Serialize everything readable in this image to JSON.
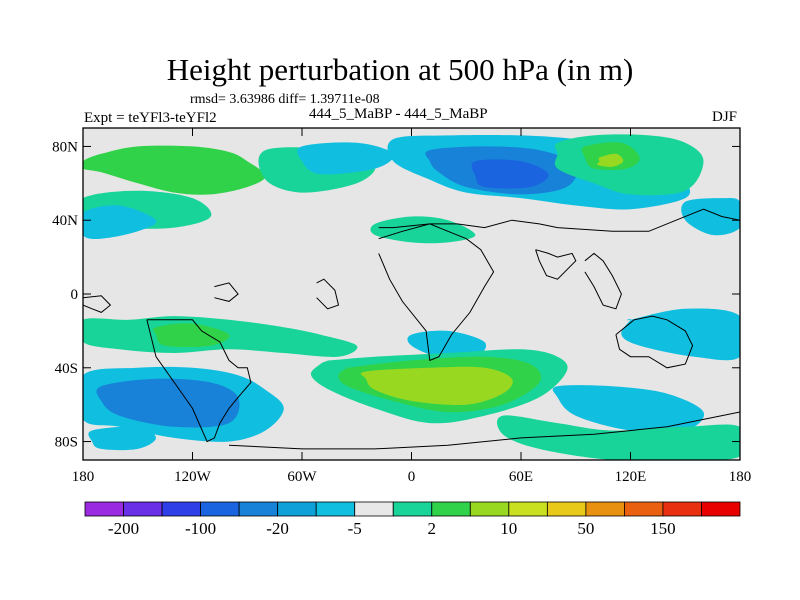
{
  "header": {
    "title": "Height perturbation at 500 hPa (in m)",
    "stats": "rmsd= 3.63986 diff= 1.39711e-08",
    "experiment": "Expt = teYFl3-teYFl2",
    "subtitle": "444_5_MaBP - 444_5_MaBP",
    "season": "DJF"
  },
  "chart_data": {
    "type": "heatmap",
    "title": "Height perturbation at 500 hPa (in m)",
    "subtitle": "444_5_MaBP - 444_5_MaBP",
    "annotations": [
      "rmsd= 3.63986 diff= 1.39711e-08",
      "Expt = teYFl3-teYFl2",
      "DJF"
    ],
    "xlim": [
      -180,
      180
    ],
    "ylim": [
      -90,
      90
    ],
    "x_ticks": [
      {
        "value": -180,
        "label": "180"
      },
      {
        "value": -120,
        "label": "120W"
      },
      {
        "value": -60,
        "label": "60W"
      },
      {
        "value": 0,
        "label": "0"
      },
      {
        "value": 60,
        "label": "60E"
      },
      {
        "value": 120,
        "label": "120E"
      },
      {
        "value": 180,
        "label": "180"
      }
    ],
    "y_ticks": [
      {
        "value": 80,
        "label": "80N"
      },
      {
        "value": 40,
        "label": "40N"
      },
      {
        "value": 0,
        "label": "0"
      },
      {
        "value": -40,
        "label": "40S"
      },
      {
        "value": -80,
        "label": "80S"
      }
    ],
    "colorbar": {
      "colors": [
        "#9a2be0",
        "#6a30e8",
        "#2e3fe8",
        "#1a64e0",
        "#1882d8",
        "#0ea0d8",
        "#10bfe0",
        "#e8e8e8",
        "#18d498",
        "#30d24a",
        "#98d820",
        "#c8e020",
        "#e8c818",
        "#e89010",
        "#e86010",
        "#e83010",
        "#e80000"
      ],
      "labels": [
        {
          "after_box": 1,
          "text": "-200"
        },
        {
          "after_box": 3,
          "text": "-100"
        },
        {
          "after_box": 5,
          "text": "-20"
        },
        {
          "after_box": 7,
          "text": "-5"
        },
        {
          "after_box": 9,
          "text": "2"
        },
        {
          "after_box": 11,
          "text": "10"
        },
        {
          "after_box": 13,
          "text": "50"
        },
        {
          "after_box": 15,
          "text": "150"
        }
      ]
    },
    "regions": [
      {
        "level": "10",
        "color": "#30d24a",
        "lon": [
          -180,
          -170,
          -150,
          -120,
          -100,
          -90,
          -80,
          -90,
          -110,
          -130,
          -150,
          -170,
          -180
        ],
        "lat": [
          72,
          76,
          80,
          80,
          77,
          72,
          64,
          58,
          54,
          55,
          60,
          66,
          68
        ]
      },
      {
        "level": "2",
        "color": "#18d498",
        "lon": [
          -80,
          -40,
          -20,
          -30,
          -60,
          -80
        ],
        "lat": [
          78,
          78,
          70,
          60,
          55,
          62
        ]
      },
      {
        "level": "-5",
        "color": "#10bfe0",
        "lon": [
          -60,
          -30,
          -10,
          -20,
          -50,
          -60
        ],
        "lat": [
          80,
          82,
          76,
          68,
          65,
          72
        ]
      },
      {
        "level": "2",
        "color": "#18d498",
        "lon": [
          -180,
          -150,
          -120,
          -110,
          -130,
          -160,
          -180
        ],
        "lat": [
          52,
          56,
          52,
          42,
          36,
          36,
          40
        ]
      },
      {
        "level": "-5",
        "color": "#10bfe0",
        "lon": [
          -180,
          -160,
          -140,
          -150,
          -170,
          -180
        ],
        "lat": [
          44,
          48,
          40,
          34,
          30,
          32
        ]
      },
      {
        "level": "-5",
        "color": "#10bfe0",
        "lon": [
          -10,
          20,
          60,
          90,
          120,
          140,
          150,
          150,
          120,
          90,
          60,
          30,
          10,
          -10
        ],
        "lat": [
          84,
          86,
          86,
          84,
          80,
          74,
          62,
          52,
          46,
          48,
          52,
          55,
          62,
          72
        ]
      },
      {
        "level": "-20",
        "color": "#1882d8",
        "lon": [
          10,
          40,
          70,
          90,
          85,
          60,
          30,
          15,
          10
        ],
        "lat": [
          78,
          80,
          78,
          70,
          58,
          54,
          58,
          66,
          72
        ]
      },
      {
        "level": "-100",
        "color": "#1a64e0",
        "lon": [
          35,
          60,
          75,
          65,
          40,
          35
        ],
        "lat": [
          72,
          72,
          65,
          58,
          58,
          64
        ]
      },
      {
        "level": "2",
        "color": "#18d498",
        "lon": [
          80,
          100,
          130,
          150,
          160,
          150,
          120,
          100,
          80,
          80
        ],
        "lat": [
          82,
          86,
          86,
          82,
          72,
          56,
          54,
          60,
          68,
          76
        ]
      },
      {
        "level": "10",
        "color": "#30d24a",
        "lon": [
          95,
          115,
          125,
          118,
          100,
          95
        ],
        "lat": [
          80,
          82,
          74,
          68,
          68,
          74
        ]
      },
      {
        "level": "50",
        "color": "#98d820",
        "lon": [
          103,
          112,
          116,
          110,
          102,
          103
        ],
        "lat": [
          74,
          76,
          72,
          69,
          70,
          72
        ]
      },
      {
        "level": "-5",
        "color": "#10bfe0",
        "lon": [
          150,
          170,
          180,
          180,
          165,
          150
        ],
        "lat": [
          50,
          52,
          50,
          36,
          32,
          40
        ]
      },
      {
        "level": "2",
        "color": "#18d498",
        "lon": [
          -20,
          0,
          20,
          35,
          20,
          0,
          -20
        ],
        "lat": [
          38,
          42,
          40,
          32,
          28,
          28,
          32
        ]
      },
      {
        "level": "2",
        "color": "#18d498",
        "lon": [
          -180,
          -155,
          -130,
          -100,
          -70,
          -50,
          -30,
          -40,
          -70,
          -100,
          -130,
          -160,
          -180
        ],
        "lat": [
          -14,
          -14,
          -12,
          -14,
          -18,
          -22,
          -28,
          -34,
          -32,
          -30,
          -32,
          -30,
          -26
        ]
      },
      {
        "level": "10",
        "color": "#30d24a",
        "lon": [
          -140,
          -120,
          -100,
          -110,
          -135,
          -140
        ],
        "lat": [
          -18,
          -16,
          -22,
          -28,
          -28,
          -22
        ]
      },
      {
        "level": "-5",
        "color": "#10bfe0",
        "lon": [
          0,
          20,
          40,
          35,
          15,
          0
        ],
        "lat": [
          -22,
          -20,
          -26,
          -34,
          -34,
          -28
        ]
      },
      {
        "level": "-5",
        "color": "#10bfe0",
        "lon": [
          120,
          150,
          180,
          180,
          155,
          125,
          115,
          120
        ],
        "lat": [
          -14,
          -8,
          -12,
          -34,
          -34,
          -28,
          -22,
          -14
        ]
      },
      {
        "level": "-5",
        "color": "#10bfe0",
        "lon": [
          -180,
          -150,
          -120,
          -95,
          -80,
          -70,
          -80,
          -100,
          -130,
          -160,
          -180
        ],
        "lat": [
          -44,
          -40,
          -40,
          -44,
          -52,
          -62,
          -74,
          -80,
          -78,
          -72,
          -68
        ]
      },
      {
        "level": "-20",
        "color": "#1882d8",
        "lon": [
          -170,
          -140,
          -110,
          -95,
          -100,
          -130,
          -160,
          -170
        ],
        "lat": [
          -50,
          -46,
          -48,
          -56,
          -70,
          -72,
          -66,
          -58
        ]
      },
      {
        "level": "-5",
        "color": "#10bfe0",
        "lon": [
          -175,
          -150,
          -140,
          -150,
          -170,
          -175
        ],
        "lat": [
          -74,
          -72,
          -78,
          -84,
          -84,
          -80
        ]
      },
      {
        "level": "2",
        "color": "#18d498",
        "lon": [
          -45,
          -20,
          20,
          60,
          80,
          85,
          70,
          40,
          10,
          -20,
          -45,
          -55,
          -50,
          -45
        ],
        "lat": [
          -36,
          -34,
          -32,
          -30,
          -34,
          -42,
          -56,
          -66,
          -70,
          -62,
          -52,
          -44,
          -38,
          -36
        ]
      },
      {
        "level": "10",
        "color": "#30d24a",
        "lon": [
          -35,
          0,
          40,
          65,
          70,
          50,
          20,
          -10,
          -35,
          -40,
          -35
        ],
        "lat": [
          -40,
          -36,
          -34,
          -38,
          -48,
          -60,
          -64,
          -58,
          -50,
          -44,
          -40
        ]
      },
      {
        "level": "50",
        "color": "#98d820",
        "lon": [
          -25,
          10,
          40,
          55,
          50,
          30,
          0,
          -20,
          -25
        ],
        "lat": [
          -42,
          -40,
          -40,
          -46,
          -54,
          -60,
          -58,
          -52,
          -46
        ]
      },
      {
        "level": "-5",
        "color": "#10bfe0",
        "lon": [
          80,
          110,
          140,
          160,
          150,
          120,
          90,
          80
        ],
        "lat": [
          -50,
          -50,
          -54,
          -64,
          -74,
          -74,
          -66,
          -56
        ]
      },
      {
        "level": "2",
        "color": "#18d498",
        "lon": [
          50,
          80,
          110,
          150,
          180,
          180,
          150,
          110,
          70,
          50
        ],
        "lat": [
          -66,
          -70,
          -74,
          -72,
          -72,
          -88,
          -90,
          -90,
          -84,
          -76
        ]
      }
    ],
    "coastlines": [
      {
        "name": "americas-west",
        "lon": [
          -180,
          -170,
          -165,
          -170,
          -175,
          -180
        ],
        "lat": [
          -2,
          -1,
          -6,
          -10,
          -8,
          -6
        ]
      },
      {
        "name": "south-america",
        "lon": [
          -145,
          -120,
          -115,
          -105,
          -100,
          -95,
          -90,
          -88,
          -95,
          -100,
          -105,
          -108,
          -112,
          -120,
          -130,
          -140,
          -145
        ],
        "lat": [
          -14,
          -14,
          -20,
          -26,
          -36,
          -40,
          -40,
          -48,
          -56,
          -62,
          -70,
          -78,
          -80,
          -62,
          -48,
          -34,
          -14
        ]
      },
      {
        "name": "antarctica",
        "lon": [
          -100,
          -60,
          -20,
          20,
          60,
          100,
          140,
          160,
          180
        ],
        "lat": [
          -82,
          -84,
          -84,
          -82,
          -78,
          -76,
          -72,
          -68,
          -64
        ]
      },
      {
        "name": "africa",
        "lon": [
          -18,
          -10,
          0,
          10,
          20,
          30,
          38,
          45,
          40,
          32,
          22,
          15,
          10,
          8,
          -5,
          -12,
          -18
        ],
        "lat": [
          36,
          36,
          37,
          38,
          34,
          30,
          24,
          12,
          4,
          -10,
          -22,
          -34,
          -36,
          -20,
          -4,
          8,
          22
        ]
      },
      {
        "name": "europe-asia",
        "lon": [
          -18,
          -5,
          10,
          25,
          40,
          55,
          70,
          80,
          110,
          130,
          145,
          160,
          170,
          180
        ],
        "lat": [
          30,
          34,
          38,
          38,
          36,
          40,
          38,
          36,
          34,
          34,
          40,
          46,
          42,
          40
        ]
      },
      {
        "name": "india",
        "lon": [
          68,
          75,
          80,
          88,
          90,
          80,
          74,
          70,
          68
        ],
        "lat": [
          24,
          22,
          20,
          22,
          18,
          8,
          10,
          18,
          24
        ]
      },
      {
        "name": "se-asia",
        "lon": [
          95,
          100,
          105,
          110,
          115,
          112,
          105,
          100,
          95
        ],
        "lat": [
          18,
          22,
          18,
          10,
          0,
          -8,
          -6,
          4,
          12
        ]
      },
      {
        "name": "australia",
        "lon": [
          112,
          122,
          132,
          140,
          150,
          154,
          150,
          140,
          130,
          120,
          114,
          112
        ],
        "lat": [
          -22,
          -14,
          -12,
          -14,
          -20,
          -28,
          -38,
          -40,
          -34,
          -34,
          -30,
          -22
        ]
      },
      {
        "name": "greenland-isle",
        "lon": [
          -52,
          -48,
          -42,
          -40,
          -46,
          -52
        ],
        "lat": [
          6,
          8,
          2,
          -6,
          -8,
          -2
        ]
      },
      {
        "name": "island-west",
        "lon": [
          -108,
          -100,
          -95,
          -100,
          -108
        ],
        "lat": [
          4,
          6,
          0,
          -4,
          -2
        ]
      }
    ]
  }
}
